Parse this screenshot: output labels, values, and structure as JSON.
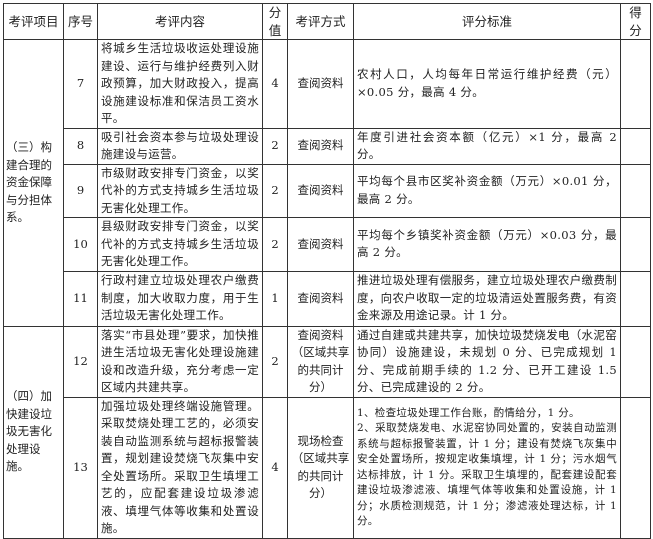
{
  "headers": [
    "考评项目",
    "序号",
    "考评内容",
    "分值",
    "考评方式",
    "评分标准",
    "得分"
  ],
  "groups": [
    {
      "category": "（三）构建合理的资金保障与分担体系。",
      "rows": [
        {
          "no": "7",
          "content": "将城乡生活垃圾收运处理设施建设、运行与维护经费列入财政预算，加大财政投入，提高设施建设标准和保洁员工资水平。",
          "score": "4",
          "method": "查阅资料",
          "standard": "农村人口，人均每年日常运行维护经费（元）×0.05 分，最高 4 分。",
          "result": ""
        },
        {
          "no": "8",
          "content": "吸引社会资本参与垃圾处理设施建设与运营。",
          "score": "2",
          "method": "查阅资料",
          "standard": "年度引进社会资本额（亿元）×1 分，最高 2 分。",
          "result": ""
        },
        {
          "no": "9",
          "content": "市级财政安排专门资金，以奖代补的方式支持城乡生活垃圾无害化处理工作。",
          "score": "2",
          "method": "查阅资料",
          "standard": "平均每个县市区奖补资金额（万元）×0.01 分，最高 2 分。",
          "result": ""
        },
        {
          "no": "10",
          "content": "县级财政安排专门资金，以奖代补的方式支持城乡生活垃圾无害化处理工作。",
          "score": "2",
          "method": "查阅资料",
          "standard": "平均每个乡镇奖补资金额（万元）×0.03 分，最高 2 分。",
          "result": ""
        },
        {
          "no": "11",
          "content": "行政村建立垃圾处理农户缴费制度，加大收取力度，用于生活垃圾无害化处理工作。",
          "score": "1",
          "method": "查阅资料",
          "standard": "推进垃圾处理有偿服务，建立垃圾处理农户缴费制度，向农户收取一定的垃圾清运处置服务费，有资金来源及用途记录。计 1 分。",
          "result": ""
        }
      ]
    },
    {
      "category": "（四）加快建设垃圾无害化处理设施。",
      "rows": [
        {
          "no": "12",
          "content": "落实“市县处理”要求，加快推进生活垃圾无害化处理设施建设和改造升级，充分考虑一定区域内共建共享。",
          "score": "2",
          "method": "查阅资料（区域共享的共同计分）",
          "standard": "通过自建或共建共享，加快垃圾焚烧发电（水泥窑协同）设施建设，未规划 0 分、已完成规划 1 分、完成前期手续的 1.2 分、已开工建设 1.5 分、已完成建设的 2 分。",
          "result": ""
        },
        {
          "no": "13",
          "content": "加强垃圾处理终端设施管理。采取焚烧处理工艺的，必须安装自动监测系统与超标报警装置，规划建设焚烧飞灰集中安全处置场所。采取卫生填埋工艺的，应配套建设垃圾渗滤液、填埋气体等收集和处置设施。",
          "score": "4",
          "method": "现场检查（区域共享的共同计分）",
          "standard_lines": [
            "1、检查垃圾处理工作台账，酌情给分，1 分。",
            "2、采取焚烧发电、水泥窑协同处置的，安装自动监测系统与超标报警装置，计 1 分；建设有焚烧飞灰集中安全处置场所，按规定收集填埋，计 1 分；污水烟气达标排放，计 1 分。采取卫生填埋的，配套建设配套建设垃圾渗滤液、填埋气体等收集和处置设施，计 1 分；水质检测规范，计 1 分；渗滤液处理达标，计 1 分。"
          ],
          "result": ""
        }
      ]
    }
  ]
}
